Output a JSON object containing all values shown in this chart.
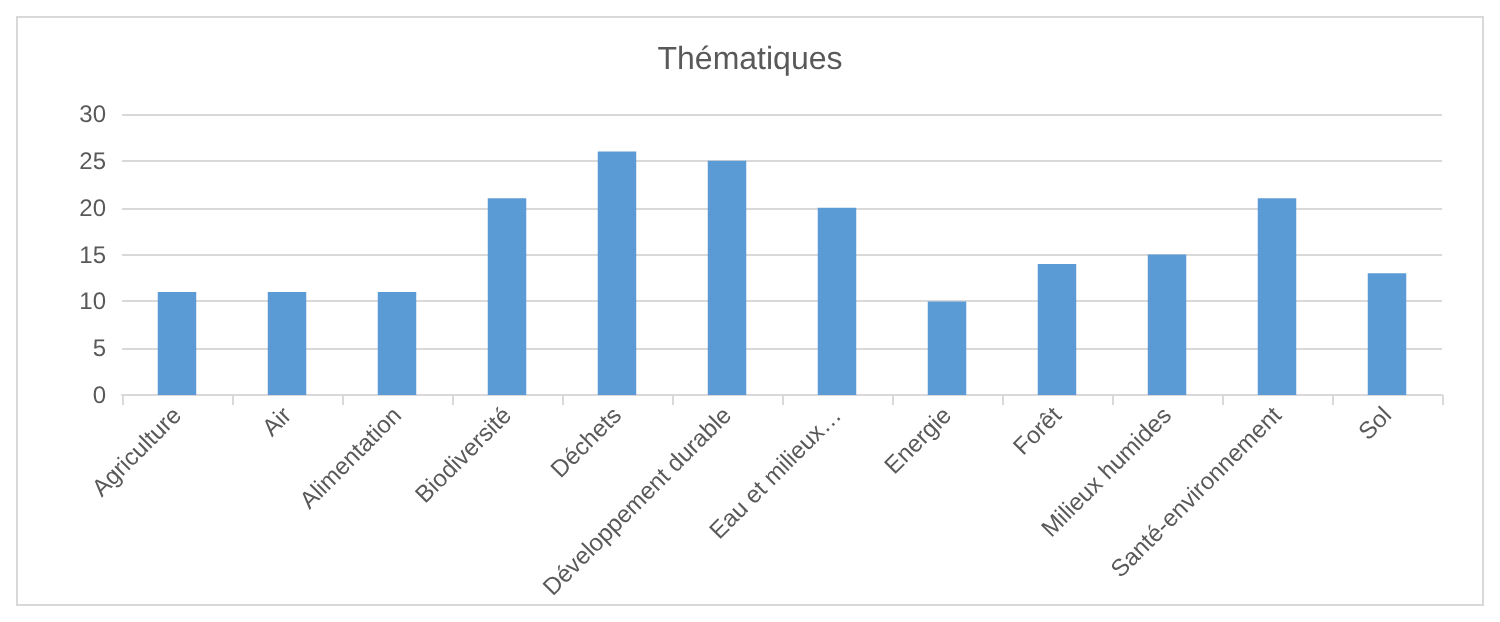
{
  "chart_data": {
    "type": "bar",
    "title": "Thématiques",
    "categories": [
      "Agriculture",
      "Air",
      "Alimentation",
      "Biodiversité",
      "Déchets",
      "Développement durable",
      "Eau et milieux…",
      "Energie",
      "Forêt",
      "Milieux humides",
      "Santé-environnement",
      "Sol"
    ],
    "values": [
      11,
      11,
      11,
      21,
      26,
      25,
      20,
      10,
      14,
      15,
      21,
      13
    ],
    "color": "#5b9bd5",
    "ylim": [
      0,
      30
    ],
    "yticks": [
      0,
      5,
      10,
      15,
      20,
      25,
      30
    ],
    "grid": "y"
  }
}
